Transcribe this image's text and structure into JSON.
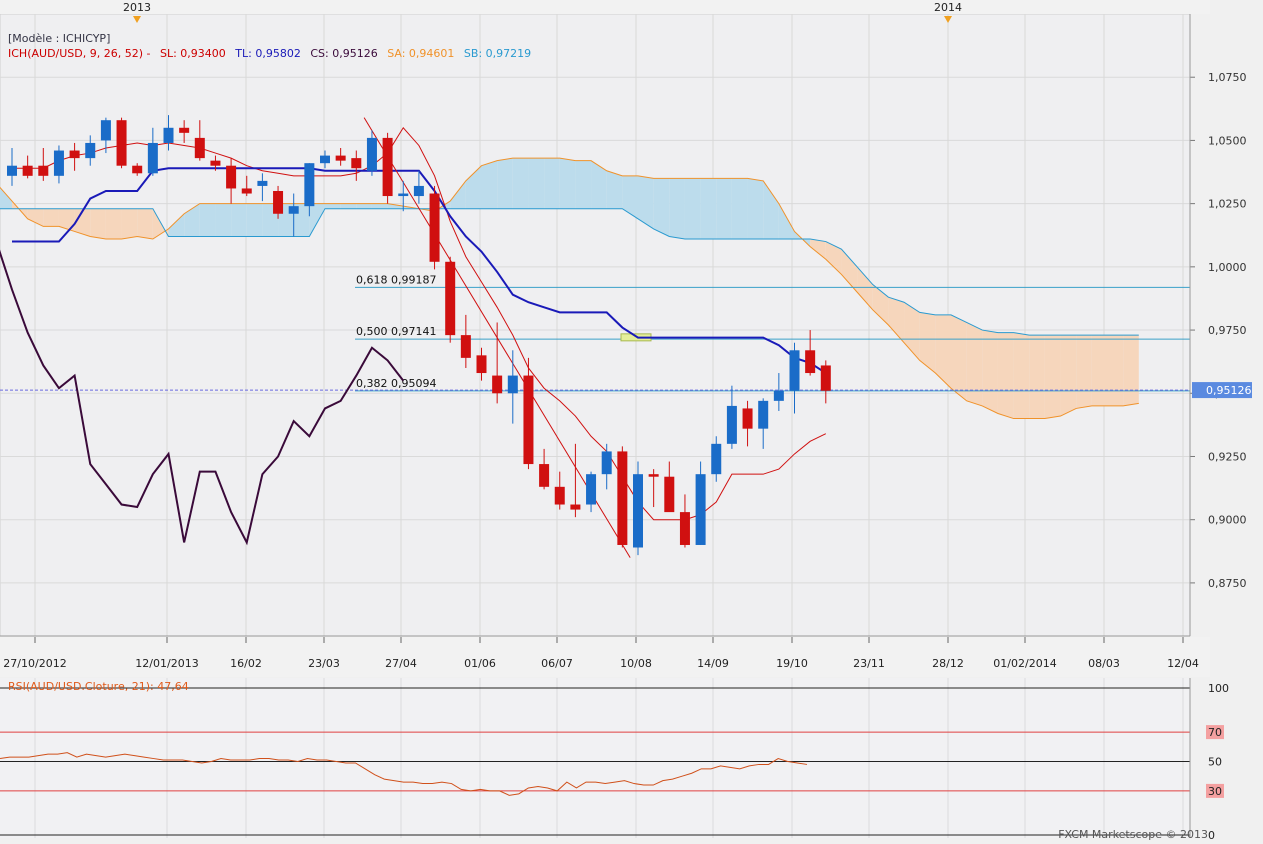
{
  "chart_data": {
    "type": "candlestick",
    "model_label": "[Modèle : ICHICYP]",
    "legend": {
      "ich": "ICH(AUD/USD, 9, 26, 52) -",
      "sl": "SL: 0,93400",
      "tl": "TL: 0,95802",
      "cs": "CS: 0,95126",
      "sa": "SA: 0,94601",
      "sb": "SB: 0,97219"
    },
    "years": [
      "2013",
      "2014"
    ],
    "x_labels": [
      "27/10/2012",
      "12/01/2013",
      "16/02",
      "23/03",
      "27/04",
      "01/06",
      "06/07",
      "10/08",
      "14/09",
      "19/10",
      "23/11",
      "28/12",
      "01/02/2014",
      "08/03",
      "12/04"
    ],
    "y_labels": [
      "1,0750",
      "1,0500",
      "1,0250",
      "1,0000",
      "0,9750",
      "0,9500",
      "0,9250",
      "0,9000",
      "0,8750"
    ],
    "y_ticks": [
      1.075,
      1.05,
      1.025,
      1.0,
      0.975,
      0.95,
      0.925,
      0.9,
      0.875
    ],
    "ylim": [
      0.854,
      1.1
    ],
    "current_price": "0,95126",
    "current_value": 0.95126,
    "fibo": [
      {
        "label": "0,618 0,99187",
        "value": 0.99187
      },
      {
        "label": "0,500 0,97141",
        "value": 0.97141
      },
      {
        "label": "0,382 0,95094",
        "value": 0.95094
      }
    ],
    "candles": [
      {
        "o": 1.036,
        "h": 1.047,
        "l": 1.032,
        "c": 1.04
      },
      {
        "o": 1.04,
        "h": 1.044,
        "l": 1.035,
        "c": 1.036
      },
      {
        "o": 1.04,
        "h": 1.047,
        "l": 1.034,
        "c": 1.036
      },
      {
        "o": 1.036,
        "h": 1.048,
        "l": 1.033,
        "c": 1.046
      },
      {
        "o": 1.046,
        "h": 1.049,
        "l": 1.038,
        "c": 1.043
      },
      {
        "o": 1.043,
        "h": 1.052,
        "l": 1.04,
        "c": 1.049
      },
      {
        "o": 1.05,
        "h": 1.059,
        "l": 1.045,
        "c": 1.058
      },
      {
        "o": 1.058,
        "h": 1.059,
        "l": 1.039,
        "c": 1.04
      },
      {
        "o": 1.04,
        "h": 1.041,
        "l": 1.036,
        "c": 1.037
      },
      {
        "o": 1.037,
        "h": 1.055,
        "l": 1.036,
        "c": 1.049
      },
      {
        "o": 1.049,
        "h": 1.06,
        "l": 1.046,
        "c": 1.055
      },
      {
        "o": 1.055,
        "h": 1.058,
        "l": 1.049,
        "c": 1.053
      },
      {
        "o": 1.051,
        "h": 1.058,
        "l": 1.042,
        "c": 1.043
      },
      {
        "o": 1.042,
        "h": 1.044,
        "l": 1.038,
        "c": 1.04
      },
      {
        "o": 1.04,
        "h": 1.043,
        "l": 1.025,
        "c": 1.031
      },
      {
        "o": 1.031,
        "h": 1.036,
        "l": 1.028,
        "c": 1.029
      },
      {
        "o": 1.032,
        "h": 1.037,
        "l": 1.026,
        "c": 1.034
      },
      {
        "o": 1.03,
        "h": 1.032,
        "l": 1.019,
        "c": 1.021
      },
      {
        "o": 1.021,
        "h": 1.029,
        "l": 1.012,
        "c": 1.024
      },
      {
        "o": 1.024,
        "h": 1.041,
        "l": 1.02,
        "c": 1.041
      },
      {
        "o": 1.041,
        "h": 1.046,
        "l": 1.039,
        "c": 1.044
      },
      {
        "o": 1.044,
        "h": 1.047,
        "l": 1.04,
        "c": 1.042
      },
      {
        "o": 1.043,
        "h": 1.046,
        "l": 1.034,
        "c": 1.039
      },
      {
        "o": 1.038,
        "h": 1.054,
        "l": 1.036,
        "c": 1.051
      },
      {
        "o": 1.051,
        "h": 1.053,
        "l": 1.025,
        "c": 1.028
      },
      {
        "o": 1.028,
        "h": 1.034,
        "l": 1.022,
        "c": 1.029
      },
      {
        "o": 1.028,
        "h": 1.038,
        "l": 1.025,
        "c": 1.032
      },
      {
        "o": 1.029,
        "h": 1.032,
        "l": 0.999,
        "c": 1.002
      },
      {
        "o": 1.002,
        "h": 1.004,
        "l": 0.97,
        "c": 0.973
      },
      {
        "o": 0.973,
        "h": 0.981,
        "l": 0.96,
        "c": 0.964
      },
      {
        "o": 0.965,
        "h": 0.968,
        "l": 0.955,
        "c": 0.958
      },
      {
        "o": 0.957,
        "h": 0.978,
        "l": 0.946,
        "c": 0.95
      },
      {
        "o": 0.95,
        "h": 0.967,
        "l": 0.938,
        "c": 0.957
      },
      {
        "o": 0.957,
        "h": 0.964,
        "l": 0.92,
        "c": 0.922
      },
      {
        "o": 0.922,
        "h": 0.928,
        "l": 0.912,
        "c": 0.913
      },
      {
        "o": 0.913,
        "h": 0.919,
        "l": 0.904,
        "c": 0.906
      },
      {
        "o": 0.906,
        "h": 0.93,
        "l": 0.901,
        "c": 0.904
      },
      {
        "o": 0.906,
        "h": 0.919,
        "l": 0.903,
        "c": 0.918
      },
      {
        "o": 0.918,
        "h": 0.93,
        "l": 0.912,
        "c": 0.927
      },
      {
        "o": 0.927,
        "h": 0.929,
        "l": 0.889,
        "c": 0.89
      },
      {
        "o": 0.889,
        "h": 0.923,
        "l": 0.886,
        "c": 0.918
      },
      {
        "o": 0.918,
        "h": 0.92,
        "l": 0.905,
        "c": 0.917
      },
      {
        "o": 0.917,
        "h": 0.923,
        "l": 0.904,
        "c": 0.903
      },
      {
        "o": 0.903,
        "h": 0.91,
        "l": 0.889,
        "c": 0.89
      },
      {
        "o": 0.89,
        "h": 0.923,
        "l": 0.89,
        "c": 0.918
      },
      {
        "o": 0.918,
        "h": 0.933,
        "l": 0.915,
        "c": 0.93
      },
      {
        "o": 0.93,
        "h": 0.953,
        "l": 0.928,
        "c": 0.945
      },
      {
        "o": 0.944,
        "h": 0.947,
        "l": 0.929,
        "c": 0.936
      },
      {
        "o": 0.936,
        "h": 0.948,
        "l": 0.928,
        "c": 0.947
      },
      {
        "o": 0.947,
        "h": 0.958,
        "l": 0.943,
        "c": 0.951
      },
      {
        "o": 0.951,
        "h": 0.97,
        "l": 0.942,
        "c": 0.967
      },
      {
        "o": 0.967,
        "h": 0.975,
        "l": 0.957,
        "c": 0.958
      },
      {
        "o": 0.961,
        "h": 0.963,
        "l": 0.946,
        "c": 0.951
      }
    ],
    "tenkan": [
      1.039,
      1.039,
      1.039,
      1.042,
      1.044,
      1.045,
      1.047,
      1.048,
      1.049,
      1.048,
      1.049,
      1.048,
      1.047,
      1.045,
      1.043,
      1.04,
      1.038,
      1.037,
      1.036,
      1.036,
      1.036,
      1.036,
      1.037,
      1.04,
      1.045,
      1.055,
      1.048,
      1.036,
      1.018,
      1.004,
      0.994,
      0.984,
      0.973,
      0.96,
      0.952,
      0.947,
      0.941,
      0.933,
      0.927,
      0.917,
      0.907,
      0.9,
      0.9,
      0.9,
      0.902,
      0.907,
      0.918,
      0.918,
      0.918,
      0.92,
      0.926,
      0.931,
      0.934
    ],
    "kijun": [
      1.01,
      1.01,
      1.01,
      1.01,
      1.017,
      1.027,
      1.03,
      1.03,
      1.03,
      1.038,
      1.039,
      1.039,
      1.039,
      1.039,
      1.039,
      1.039,
      1.039,
      1.039,
      1.039,
      1.039,
      1.038,
      1.038,
      1.038,
      1.038,
      1.038,
      1.038,
      1.038,
      1.03,
      1.02,
      1.012,
      1.006,
      0.998,
      0.989,
      0.986,
      0.984,
      0.982,
      0.982,
      0.982,
      0.982,
      0.976,
      0.972,
      0.972,
      0.972,
      0.972,
      0.972,
      0.972,
      0.972,
      0.972,
      0.972,
      0.969,
      0.964,
      0.962,
      0.958
    ],
    "span_a": [
      1.036,
      1.033,
      1.026,
      1.019,
      1.016,
      1.016,
      1.014,
      1.012,
      1.011,
      1.011,
      1.012,
      1.011,
      1.015,
      1.021,
      1.025,
      1.025,
      1.025,
      1.025,
      1.025,
      1.025,
      1.025,
      1.025,
      1.025,
      1.025,
      1.025,
      1.025,
      1.025,
      1.024,
      1.023,
      1.022,
      1.026,
      1.034,
      1.04,
      1.042,
      1.043,
      1.043,
      1.043,
      1.043,
      1.042,
      1.042,
      1.038,
      1.036,
      1.036,
      1.035,
      1.035,
      1.035,
      1.035,
      1.035,
      1.035,
      1.035,
      1.034,
      1.025,
      1.014,
      1.008,
      1.003,
      0.997,
      0.99,
      0.983,
      0.977,
      0.97,
      0.963,
      0.958,
      0.952,
      0.947,
      0.945,
      0.942,
      0.94,
      0.94,
      0.94,
      0.941,
      0.944,
      0.945,
      0.945,
      0.945,
      0.946
    ],
    "span_b": [
      1.023,
      1.023,
      1.023,
      1.023,
      1.023,
      1.023,
      1.023,
      1.023,
      1.023,
      1.023,
      1.023,
      1.023,
      1.012,
      1.012,
      1.012,
      1.012,
      1.012,
      1.012,
      1.012,
      1.012,
      1.012,
      1.012,
      1.023,
      1.023,
      1.023,
      1.023,
      1.023,
      1.023,
      1.023,
      1.023,
      1.023,
      1.023,
      1.023,
      1.023,
      1.023,
      1.023,
      1.023,
      1.023,
      1.023,
      1.023,
      1.023,
      1.023,
      1.019,
      1.015,
      1.012,
      1.011,
      1.011,
      1.011,
      1.011,
      1.011,
      1.011,
      1.011,
      1.011,
      1.011,
      1.01,
      1.007,
      1.0,
      0.993,
      0.988,
      0.986,
      0.982,
      0.981,
      0.981,
      0.978,
      0.975,
      0.974,
      0.974,
      0.973,
      0.973,
      0.973,
      0.973,
      0.973,
      0.973,
      0.973,
      0.973
    ],
    "chikou": [
      1.01,
      0.991,
      0.974,
      0.961,
      0.952,
      0.957,
      0.922,
      0.914,
      0.906,
      0.905,
      0.918,
      0.926,
      0.891,
      0.919,
      0.919,
      0.903,
      0.891,
      0.918,
      0.925,
      0.939,
      0.933,
      0.944,
      0.947,
      0.957,
      0.968,
      0.963,
      0.955
    ],
    "trendline": {
      "from": {
        "i": 22.5,
        "v": 1.059
      },
      "to": {
        "i": 39.5,
        "v": 0.885
      }
    },
    "rsi": {
      "title": "RSI(AUD/USD.Cloture, 21): 47,64",
      "levels": [
        "100",
        "70",
        "50",
        "30",
        "0"
      ],
      "level_values": [
        100,
        70,
        50,
        30,
        0
      ],
      "values": [
        52,
        53,
        53,
        53,
        54,
        55,
        55,
        56,
        53,
        55,
        54,
        53,
        54,
        55,
        54,
        53,
        52,
        51,
        51,
        51,
        50,
        49,
        50,
        52,
        51,
        51,
        51,
        52,
        52,
        51,
        51,
        50,
        52,
        51,
        51,
        50,
        49,
        49,
        45,
        41,
        38,
        37,
        36,
        36,
        35,
        35,
        36,
        35,
        31,
        30,
        31,
        30,
        30,
        27,
        28,
        32,
        33,
        32,
        30,
        36,
        32,
        36,
        36,
        35,
        36,
        37,
        35,
        34,
        34,
        37,
        38,
        40,
        42,
        45,
        45,
        47,
        46,
        45,
        47,
        48,
        48,
        52,
        50,
        49,
        48
      ]
    },
    "credit": "FXCM Marketscope © 2013"
  }
}
